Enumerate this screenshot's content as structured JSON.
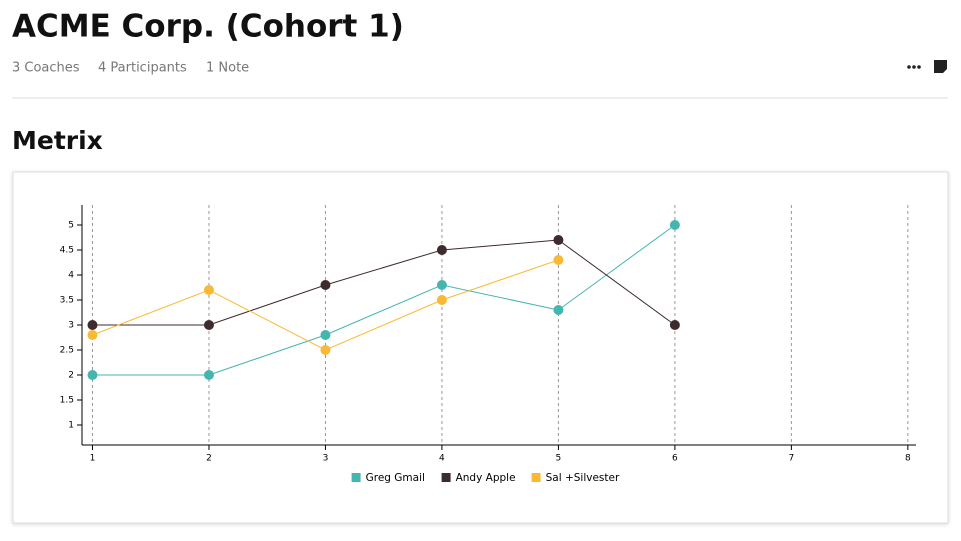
{
  "header": {
    "title": "ACME Corp. (Cohort 1)",
    "stats": [
      "3 Coaches",
      "4 Participants",
      "1 Note"
    ]
  },
  "section": {
    "title": "Metrix"
  },
  "chart_data": {
    "type": "line",
    "x": [
      1,
      2,
      3,
      4,
      5,
      6
    ],
    "series": [
      {
        "name": "Greg Gmail",
        "color": "#45b5b0",
        "values": [
          2,
          2,
          2.8,
          3.8,
          3.3,
          5
        ]
      },
      {
        "name": "Andy Apple",
        "color": "#3d2b2e",
        "values": [
          3,
          3,
          3.8,
          4.5,
          4.7,
          3
        ]
      },
      {
        "name": "Sal +Silvester",
        "color": "#f9b934",
        "values": [
          2.8,
          3.7,
          2.5,
          3.5,
          4.3,
          null
        ]
      }
    ],
    "xlim": [
      0.91,
      8.07
    ],
    "xticks": [
      1,
      2,
      3,
      4,
      5,
      6,
      7,
      8
    ],
    "ylim": [
      0.6,
      5.4
    ],
    "yticks": [
      1,
      1.5,
      2,
      2.5,
      3,
      3.5,
      4,
      4.5,
      5
    ],
    "grid": true,
    "legend": "bottom"
  }
}
